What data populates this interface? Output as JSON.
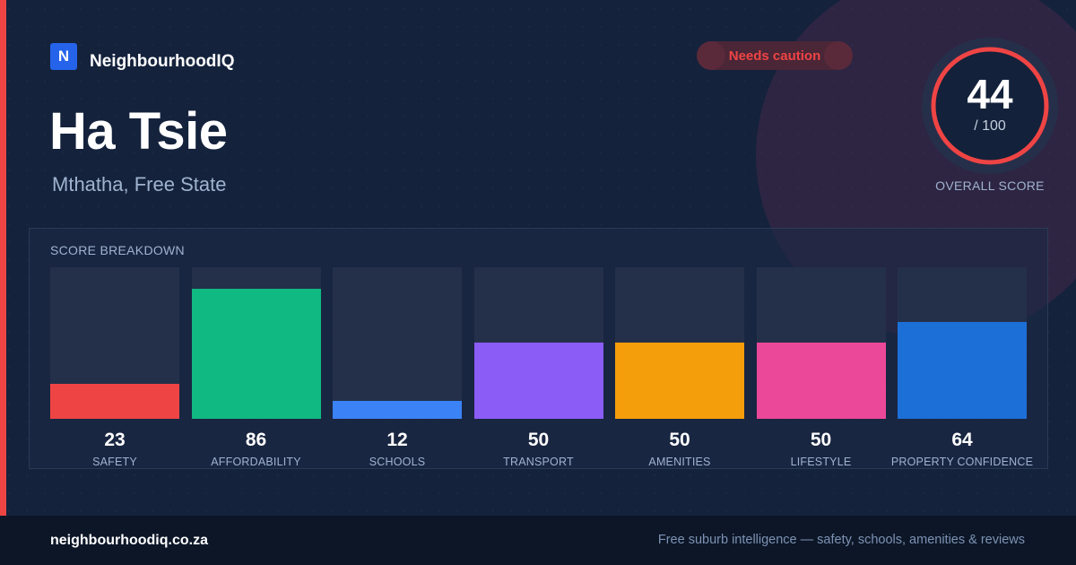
{
  "brand": {
    "logo_letter": "N",
    "name": "NeighbourhoodIQ"
  },
  "suburb": {
    "name": "Ha Tsie",
    "location": "Mthatha, Free State"
  },
  "status_badge": {
    "label": "Needs caution",
    "color": "#ef4444"
  },
  "overall": {
    "score": "44",
    "max_label": "/ 100",
    "label": "OVERALL SCORE",
    "max": 100,
    "ring_color": "#ef4444"
  },
  "breakdown": {
    "title": "SCORE BREAKDOWN"
  },
  "chart_data": {
    "type": "bar",
    "title": "SCORE BREAKDOWN",
    "categories": [
      "SAFETY",
      "AFFORDABILITY",
      "SCHOOLS",
      "TRANSPORT",
      "AMENITIES",
      "LIFESTYLE",
      "PROPERTY CONFIDENCE"
    ],
    "values": [
      23,
      86,
      12,
      50,
      50,
      50,
      64
    ],
    "colors": [
      "#ef4444",
      "#10b981",
      "#3b82f6",
      "#8b5cf6",
      "#f59e0b",
      "#ec4899",
      "#1d6fd8"
    ],
    "ylim": [
      0,
      100
    ],
    "grid": false
  },
  "footer": {
    "domain": "neighbourhoodiq.co.za",
    "tagline": "Free suburb intelligence — safety, schools, amenities & reviews"
  }
}
